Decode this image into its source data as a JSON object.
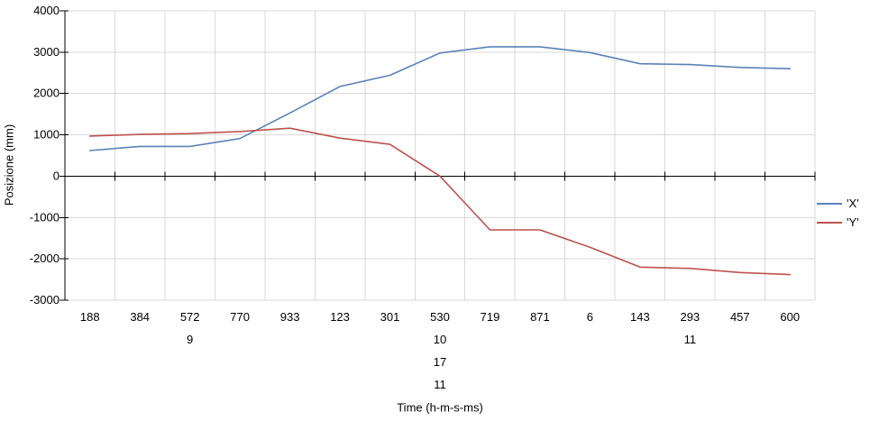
{
  "chart_data": {
    "type": "line",
    "title": "",
    "xlabel": "Time (h-m-s-ms)",
    "ylabel": "Posizione (mm)",
    "ylim": [
      -3000,
      4000
    ],
    "y_ticks": [
      4000,
      3000,
      2000,
      1000,
      0,
      -1000,
      -2000,
      -3000
    ],
    "grid": true,
    "legend_position": "right",
    "categories": [
      "188",
      "384",
      "572",
      "770",
      "933",
      "123",
      "301",
      "530",
      "719",
      "871",
      "6",
      "143",
      "293",
      "457",
      "600"
    ],
    "category_extra_rows": [
      {
        "index": 2,
        "lines": [
          "9"
        ]
      },
      {
        "index": 7,
        "lines": [
          "10",
          "17",
          "11"
        ]
      },
      {
        "index": 12,
        "lines": [
          "11"
        ]
      }
    ],
    "series": [
      {
        "name": "X",
        "label": "'X'",
        "color": "#5b82b8",
        "values": [
          620,
          720,
          720,
          910,
          1530,
          2170,
          2440,
          2980,
          3130,
          3130,
          2990,
          2720,
          2700,
          2630,
          2600
        ]
      },
      {
        "name": "Y",
        "label": "'Y'",
        "color": "#bd524e",
        "values": [
          970,
          1010,
          1030,
          1080,
          1160,
          920,
          770,
          0,
          -1300,
          -1300,
          -1720,
          -2200,
          -2230,
          -2330,
          -2380
        ]
      }
    ]
  },
  "colors": {
    "background": "#ffffff",
    "grid": "#d9d9d9",
    "axis": "#000000",
    "text": "#000000"
  }
}
